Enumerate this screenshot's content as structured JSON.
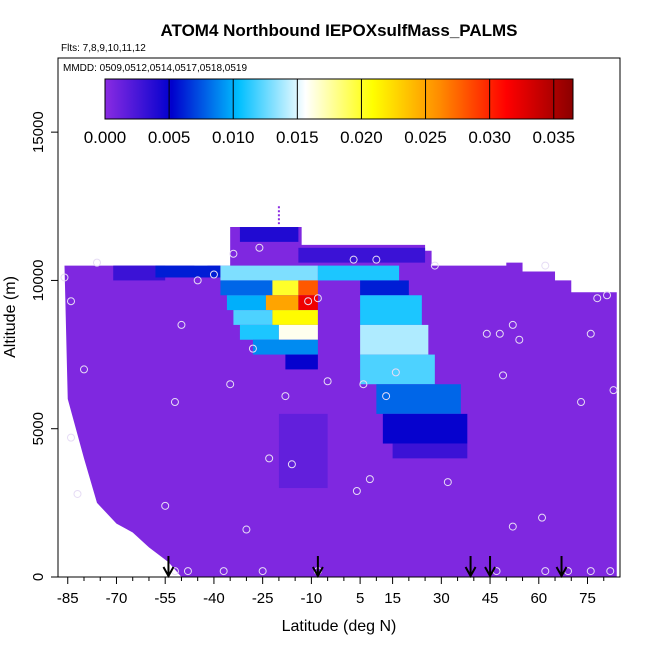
{
  "chart_data": {
    "type": "heatmap",
    "title": "ATOM4 Northbound IEPOXsulfMass_PALMS",
    "subtitle_flights": "Flts: 7,8,9,10,11,12",
    "subtitle_dates": "MMDD: 0509,0512,0514,0517,0518,0519",
    "xlabel": "Latitude (deg N)",
    "ylabel": "Altitude (m)",
    "xlim": [
      -88,
      85
    ],
    "ylim": [
      0,
      17500
    ],
    "x_ticks": [
      "-85",
      "-70",
      "-55",
      "-40",
      "-25",
      "-10",
      "5",
      "15",
      "30",
      "45",
      "60",
      "75"
    ],
    "x_tick_values": [
      -85,
      -70,
      -55,
      -40,
      -25,
      -10,
      5,
      15,
      30,
      45,
      60,
      75
    ],
    "y_ticks": [
      "0",
      "5000",
      "10000",
      "15000"
    ],
    "y_tick_values": [
      0,
      5000,
      10000,
      15000
    ],
    "colorbar": {
      "ticks": [
        "0.000",
        "0.005",
        "0.010",
        "0.015",
        "0.020",
        "0.025",
        "0.030",
        "0.035"
      ],
      "tick_values": [
        0.0,
        0.005,
        0.01,
        0.015,
        0.02,
        0.025,
        0.03,
        0.035
      ],
      "range": [
        0.0,
        0.0365
      ],
      "colors": [
        "#8a2be2",
        "#0000cd",
        "#00bfff",
        "#ffffff",
        "#ffff00",
        "#ff8c00",
        "#ff0000",
        "#8b0000"
      ]
    },
    "background_value": 0.0004,
    "envelope": [
      {
        "x": -86,
        "top": 10500
      },
      {
        "x": -79,
        "top": 10500
      },
      {
        "x": -50,
        "top": 10500
      },
      {
        "x": -46,
        "top": 10300
      },
      {
        "x": -42,
        "top": 10500
      },
      {
        "x": -35,
        "top": 11800
      },
      {
        "x": -14,
        "top": 11800
      },
      {
        "x": -13,
        "top": 11200
      },
      {
        "x": 25,
        "top": 11000
      },
      {
        "x": 27,
        "top": 10500
      },
      {
        "x": 50,
        "top": 10600
      },
      {
        "x": 55,
        "top": 10300
      },
      {
        "x": 65,
        "top": 10000
      },
      {
        "x": 70,
        "top": 9600
      },
      {
        "x": 84,
        "top": 9600
      }
    ],
    "bottom_envelope": [
      {
        "x": -85,
        "bottom": 6000
      },
      {
        "x": -80,
        "bottom": 4000
      },
      {
        "x": -76,
        "bottom": 2500
      },
      {
        "x": -70,
        "bottom": 1800
      },
      {
        "x": -65,
        "bottom": 1500
      },
      {
        "x": -60,
        "bottom": 1000
      },
      {
        "x": -54,
        "bottom": 500
      },
      {
        "x": -50,
        "bottom": 0
      },
      {
        "x": 84,
        "bottom": 0
      }
    ],
    "features": [
      {
        "x0": -71,
        "x1": -55,
        "y0": 10000,
        "y1": 10500,
        "value": 0.003
      },
      {
        "x0": -58,
        "x1": -38,
        "y0": 10100,
        "y1": 10500,
        "value": 0.006
      },
      {
        "x0": -38,
        "x1": -8,
        "y0": 10000,
        "y1": 10500,
        "value": 0.013
      },
      {
        "x0": -8,
        "x1": 17,
        "y0": 10000,
        "y1": 10500,
        "value": 0.011
      },
      {
        "x0": -32,
        "x1": -14,
        "y0": 11300,
        "y1": 11800,
        "value": 0.004
      },
      {
        "x0": -14,
        "x1": 25,
        "y0": 10600,
        "y1": 11100,
        "value": 0.003
      },
      {
        "x0": -38,
        "x1": -22,
        "y0": 9500,
        "y1": 10000,
        "value": 0.008
      },
      {
        "x0": -22,
        "x1": -14,
        "y0": 9500,
        "y1": 10000,
        "value": 0.02
      },
      {
        "x0": -14,
        "x1": -8,
        "y0": 9500,
        "y1": 10000,
        "value": 0.028
      },
      {
        "x0": -36,
        "x1": -24,
        "y0": 9000,
        "y1": 9500,
        "value": 0.01
      },
      {
        "x0": -24,
        "x1": -14,
        "y0": 9000,
        "y1": 9500,
        "value": 0.025
      },
      {
        "x0": -14,
        "x1": -8,
        "y0": 9000,
        "y1": 9500,
        "value": 0.032
      },
      {
        "x0": -34,
        "x1": -22,
        "y0": 8500,
        "y1": 9000,
        "value": 0.012
      },
      {
        "x0": -22,
        "x1": -8,
        "y0": 8500,
        "y1": 9000,
        "value": 0.021
      },
      {
        "x0": -32,
        "x1": -20,
        "y0": 8000,
        "y1": 8500,
        "value": 0.011
      },
      {
        "x0": -20,
        "x1": -8,
        "y0": 8000,
        "y1": 8500,
        "value": 0.016
      },
      {
        "x0": -28,
        "x1": -8,
        "y0": 7500,
        "y1": 8000,
        "value": 0.009
      },
      {
        "x0": -18,
        "x1": -8,
        "y0": 7000,
        "y1": 7500,
        "value": 0.005
      },
      {
        "x0": 5,
        "x1": 20,
        "y0": 9500,
        "y1": 10000,
        "value": 0.006
      },
      {
        "x0": 5,
        "x1": 24,
        "y0": 8500,
        "y1": 9500,
        "value": 0.011
      },
      {
        "x0": 5,
        "x1": 26,
        "y0": 7500,
        "y1": 8500,
        "value": 0.014
      },
      {
        "x0": 5,
        "x1": 28,
        "y0": 6500,
        "y1": 7500,
        "value": 0.012
      },
      {
        "x0": 10,
        "x1": 36,
        "y0": 5500,
        "y1": 6500,
        "value": 0.008
      },
      {
        "x0": 12,
        "x1": 38,
        "y0": 4500,
        "y1": 5500,
        "value": 0.005
      },
      {
        "x0": 15,
        "x1": 38,
        "y0": 4000,
        "y1": 4500,
        "value": 0.003
      },
      {
        "x0": -20,
        "x1": -5,
        "y0": 3000,
        "y1": 5500,
        "value": 0.0015
      }
    ],
    "observations": [
      {
        "x": -86,
        "y": 10100
      },
      {
        "x": -76,
        "y": 10600
      },
      {
        "x": -84,
        "y": 9300
      },
      {
        "x": -80,
        "y": 7000
      },
      {
        "x": -84,
        "y": 4700
      },
      {
        "x": -82,
        "y": 2800
      },
      {
        "x": -50,
        "y": 8500
      },
      {
        "x": -45,
        "y": 10000
      },
      {
        "x": -40,
        "y": 10200
      },
      {
        "x": -34,
        "y": 10900
      },
      {
        "x": -26,
        "y": 11100
      },
      {
        "x": -28,
        "y": 7700
      },
      {
        "x": -35,
        "y": 6500
      },
      {
        "x": -52,
        "y": 5900
      },
      {
        "x": -55,
        "y": 2400
      },
      {
        "x": -30,
        "y": 1600
      },
      {
        "x": -23,
        "y": 4000
      },
      {
        "x": -18,
        "y": 6100
      },
      {
        "x": -16,
        "y": 3800
      },
      {
        "x": -11,
        "y": 9300
      },
      {
        "x": -8,
        "y": 9400
      },
      {
        "x": -5,
        "y": 6600
      },
      {
        "x": 3,
        "y": 10700
      },
      {
        "x": 10,
        "y": 10700
      },
      {
        "x": 6,
        "y": 6500
      },
      {
        "x": 13,
        "y": 6100
      },
      {
        "x": 16,
        "y": 6900
      },
      {
        "x": 8,
        "y": 3300
      },
      {
        "x": 4,
        "y": 2900
      },
      {
        "x": 28,
        "y": 10500
      },
      {
        "x": 32,
        "y": 3200
      },
      {
        "x": 44,
        "y": 8200
      },
      {
        "x": 48,
        "y": 8200
      },
      {
        "x": 52,
        "y": 8500
      },
      {
        "x": 54,
        "y": 8000
      },
      {
        "x": 49,
        "y": 6800
      },
      {
        "x": 52,
        "y": 1700
      },
      {
        "x": 61,
        "y": 2000
      },
      {
        "x": 62,
        "y": 10500
      },
      {
        "x": 76,
        "y": 8200
      },
      {
        "x": 78,
        "y": 9400
      },
      {
        "x": 81,
        "y": 9500
      },
      {
        "x": 73,
        "y": 5900
      },
      {
        "x": 83,
        "y": 6300
      },
      {
        "x": -52,
        "y": 200
      },
      {
        "x": -48,
        "y": 200
      },
      {
        "x": -37,
        "y": 200
      },
      {
        "x": -25,
        "y": 200
      },
      {
        "x": -8,
        "y": 200
      },
      {
        "x": 47,
        "y": 200
      },
      {
        "x": 62,
        "y": 200
      },
      {
        "x": 69,
        "y": 200
      },
      {
        "x": 76,
        "y": 200
      },
      {
        "x": 82,
        "y": 200
      }
    ],
    "flight_markers": [
      -54,
      -8,
      39,
      45,
      67
    ],
    "vertical_tick": {
      "x": -20,
      "y0": 11900,
      "y1": 12500
    }
  }
}
